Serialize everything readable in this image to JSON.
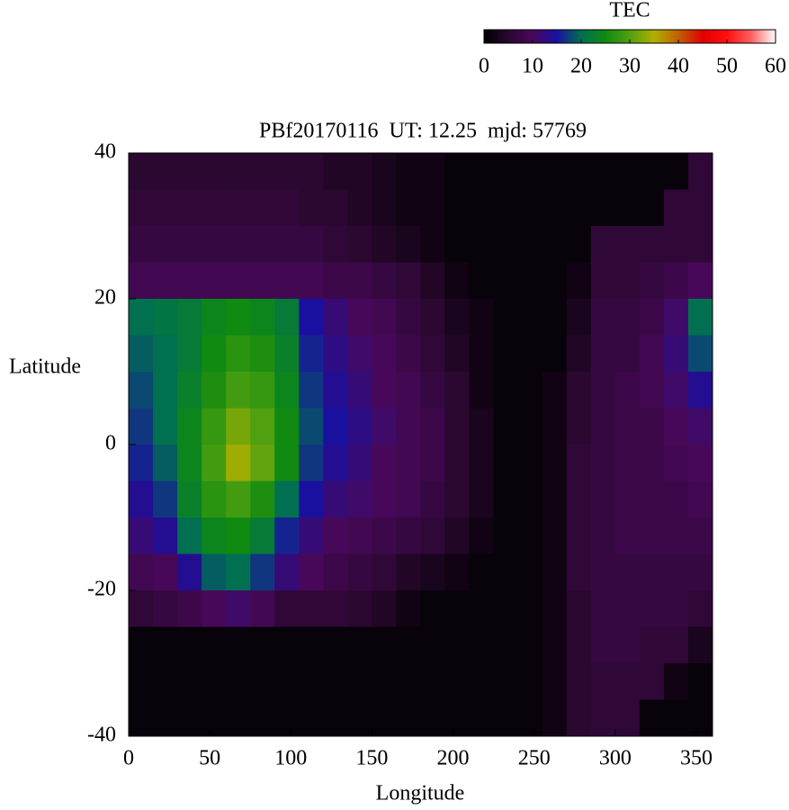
{
  "chart_data": {
    "type": "heatmap",
    "title": "PBf20170116  UT: 12.25  mjd: 57769",
    "xlabel": "Longitude",
    "ylabel": "Latitude",
    "colorbar_label": "TEC",
    "xlim": [
      0,
      360
    ],
    "xticks": [
      0,
      50,
      100,
      150,
      200,
      250,
      300,
      350
    ],
    "ylim": [
      -40,
      40
    ],
    "yticks": [
      -40,
      -20,
      0,
      20,
      40
    ],
    "zlim": [
      0,
      60
    ],
    "zticks": [
      0,
      10,
      20,
      30,
      40,
      50,
      60
    ],
    "colorscale": [
      "#000000",
      "#2a0830",
      "#48085a",
      "#1a10a0",
      "#007050",
      "#108a10",
      "#50a010",
      "#b0b000",
      "#c06000",
      "#e00000",
      "#ff1010",
      "#ff6060",
      "#ffffff"
    ],
    "x": [
      7.5,
      22.5,
      37.5,
      52.5,
      67.5,
      82.5,
      97.5,
      112.5,
      127.5,
      142.5,
      157.5,
      172.5,
      187.5,
      202.5,
      217.5,
      232.5,
      247.5,
      262.5,
      277.5,
      292.5,
      307.5,
      322.5,
      337.5,
      352.5
    ],
    "y": [
      37.5,
      32.5,
      27.5,
      22.5,
      17.5,
      12.5,
      7.5,
      2.5,
      -2.5,
      -7.5,
      -12.5,
      -17.5,
      -22.5,
      -27.5,
      -32.5,
      -37.5
    ],
    "z": [
      [
        5,
        5,
        5,
        5,
        5,
        5,
        5,
        5,
        4,
        4,
        3,
        2,
        2,
        1,
        1,
        1,
        1,
        1,
        1,
        1,
        1,
        1,
        1,
        6
      ],
      [
        6,
        6,
        6,
        6,
        6,
        6,
        6,
        5,
        5,
        4,
        3,
        2,
        2,
        1,
        1,
        1,
        1,
        1,
        1,
        1,
        1,
        1,
        6,
        6
      ],
      [
        7,
        7,
        7,
        7,
        7,
        7,
        7,
        7,
        6,
        5,
        4,
        3,
        2,
        1,
        1,
        1,
        1,
        1,
        1,
        6,
        6,
        6,
        6,
        6
      ],
      [
        9,
        9,
        9,
        9,
        9,
        9,
        9,
        9,
        8,
        8,
        7,
        6,
        4,
        2,
        1,
        1,
        1,
        1,
        2,
        6,
        6,
        7,
        8,
        10
      ],
      [
        20,
        21,
        22,
        24,
        25,
        24,
        22,
        15,
        12,
        10,
        9,
        7,
        5,
        3,
        2,
        1,
        1,
        1,
        3,
        7,
        7,
        8,
        11,
        20
      ],
      [
        19,
        20,
        22,
        25,
        27,
        26,
        23,
        16,
        13,
        11,
        10,
        8,
        6,
        4,
        2,
        1,
        1,
        1,
        4,
        7,
        7,
        9,
        12,
        18
      ],
      [
        18,
        20,
        23,
        26,
        29,
        28,
        24,
        17,
        14,
        12,
        10,
        9,
        7,
        5,
        2,
        1,
        1,
        2,
        5,
        7,
        8,
        9,
        11,
        14
      ],
      [
        17,
        20,
        24,
        28,
        32,
        30,
        25,
        18,
        15,
        13,
        11,
        9,
        8,
        5,
        3,
        1,
        1,
        2,
        5,
        7,
        8,
        8,
        10,
        11
      ],
      [
        16,
        19,
        24,
        29,
        34,
        31,
        25,
        17,
        14,
        12,
        10,
        9,
        8,
        5,
        3,
        1,
        1,
        2,
        6,
        7,
        8,
        8,
        9,
        10
      ],
      [
        14,
        17,
        23,
        27,
        29,
        26,
        20,
        15,
        12,
        11,
        10,
        9,
        7,
        5,
        3,
        1,
        1,
        2,
        6,
        7,
        8,
        8,
        8,
        9
      ],
      [
        12,
        14,
        20,
        24,
        25,
        22,
        16,
        12,
        10,
        9,
        8,
        7,
        6,
        4,
        2,
        1,
        1,
        2,
        6,
        7,
        8,
        8,
        8,
        8
      ],
      [
        9,
        10,
        14,
        19,
        20,
        17,
        12,
        10,
        8,
        7,
        6,
        4,
        3,
        2,
        1,
        1,
        1,
        2,
        6,
        7,
        7,
        7,
        7,
        7
      ],
      [
        6,
        7,
        8,
        10,
        11,
        9,
        6,
        6,
        6,
        5,
        4,
        2,
        1,
        1,
        1,
        1,
        1,
        2,
        5,
        7,
        7,
        7,
        7,
        6
      ],
      [
        1,
        1,
        1,
        1,
        1,
        1,
        1,
        1,
        1,
        1,
        1,
        1,
        1,
        1,
        1,
        1,
        1,
        2,
        5,
        7,
        7,
        6,
        6,
        3
      ],
      [
        1,
        1,
        1,
        1,
        1,
        1,
        1,
        1,
        1,
        1,
        1,
        1,
        1,
        1,
        1,
        1,
        1,
        2,
        5,
        6,
        6,
        6,
        2,
        1
      ],
      [
        1,
        1,
        1,
        1,
        1,
        1,
        1,
        1,
        1,
        1,
        1,
        1,
        1,
        1,
        1,
        1,
        1,
        2,
        5,
        6,
        6,
        1,
        1,
        1
      ]
    ]
  }
}
